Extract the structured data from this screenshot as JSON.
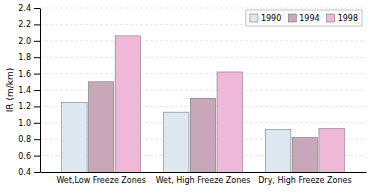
{
  "chart_data": {
    "type": "bar",
    "categories": [
      "Wet,Low Freeze Zones",
      "Wet, High Freeze Zones",
      "Dry, High Freeze Zones"
    ],
    "series": [
      {
        "name": "1990",
        "color": "#dde8f0",
        "values": [
          1.25,
          1.13,
          0.92
        ]
      },
      {
        "name": "1994",
        "color": "#c8a8b8",
        "values": [
          1.5,
          1.3,
          0.82
        ]
      },
      {
        "name": "1998",
        "color": "#f0b8d8",
        "values": [
          2.06,
          1.62,
          0.93
        ]
      }
    ],
    "ylabel": "IR (m/km)",
    "ylim": [
      0.4,
      2.4
    ],
    "yticks": [
      0.4,
      0.6,
      0.8,
      {
        "value": 1.0,
        "label": "1.0"
      },
      1.2,
      1.4,
      1.6,
      1.8,
      {
        "value": 2.0,
        "label": "2.0"
      },
      2.2,
      2.4
    ],
    "grid": true,
    "legend": "upper right"
  }
}
